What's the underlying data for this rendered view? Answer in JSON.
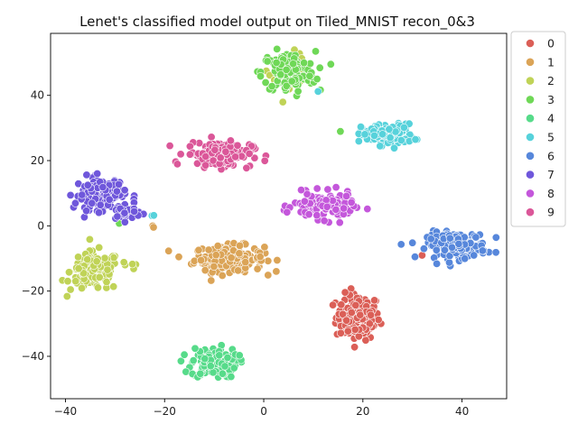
{
  "chart_data": {
    "type": "scatter",
    "title": "Lenet's classified model output on Tiled_MNIST recon_0&3",
    "xlabel": "",
    "ylabel": "",
    "xlim": [
      -43,
      49
    ],
    "ylim": [
      -53,
      59
    ],
    "xticks": [
      -40,
      -20,
      0,
      20,
      40
    ],
    "yticks": [
      -40,
      -20,
      0,
      20,
      40
    ],
    "xtick_labels": [
      "−40",
      "−20",
      "0",
      "20",
      "40"
    ],
    "ytick_labels": [
      "−40",
      "−20",
      "0",
      "20",
      "40"
    ],
    "grid": false,
    "legend_position": "outside-top-right",
    "marker_edge_color": "#ffffff",
    "series": [
      {
        "name": "0",
        "color": "#db5f57",
        "clusters": [
          {
            "cx": 19,
            "cy": -28,
            "sx": 2.2,
            "sy": 3.5,
            "n": 150
          },
          {
            "cx": 32,
            "cy": -9,
            "sx": 0.3,
            "sy": 0.3,
            "n": 2
          }
        ]
      },
      {
        "name": "1",
        "color": "#dba457",
        "clusters": [
          {
            "cx": -7,
            "cy": -10,
            "sx": 3.5,
            "sy": 2.0,
            "n": 170
          },
          {
            "cx": -22.5,
            "cy": -0.8,
            "sx": 0.4,
            "sy": 0.4,
            "n": 2
          }
        ]
      },
      {
        "name": "2",
        "color": "#c0d357",
        "clusters": [
          {
            "cx": -34,
            "cy": -14,
            "sx": 2.5,
            "sy": 3.0,
            "n": 140
          },
          {
            "cx": -26.5,
            "cy": -12,
            "sx": 0.6,
            "sy": 0.8,
            "n": 4
          },
          {
            "cx": 5,
            "cy": 48,
            "sx": 2.0,
            "sy": 2.5,
            "n": 60
          }
        ]
      },
      {
        "name": "3",
        "color": "#6fd857",
        "clusters": [
          {
            "cx": 5,
            "cy": 47,
            "sx": 2.7,
            "sy": 3.2,
            "n": 130
          },
          {
            "cx": -29,
            "cy": 1,
            "sx": 0.3,
            "sy": 0.3,
            "n": 1
          },
          {
            "cx": 15.5,
            "cy": 29.5,
            "sx": 0.2,
            "sy": 0.2,
            "n": 1
          }
        ]
      },
      {
        "name": "4",
        "color": "#57db8a",
        "clusters": [
          {
            "cx": -10,
            "cy": -42,
            "sx": 2.3,
            "sy": 2.3,
            "n": 140
          }
        ]
      },
      {
        "name": "5",
        "color": "#57d2db",
        "clusters": [
          {
            "cx": 25,
            "cy": 28,
            "sx": 2.6,
            "sy": 1.6,
            "n": 140
          },
          {
            "cx": -22.5,
            "cy": 3,
            "sx": 0.3,
            "sy": 0.2,
            "n": 2
          },
          {
            "cx": 11,
            "cy": 41.5,
            "sx": 0.2,
            "sy": 0.2,
            "n": 1
          }
        ]
      },
      {
        "name": "6",
        "color": "#5787db",
        "clusters": [
          {
            "cx": 39,
            "cy": -6,
            "sx": 3.0,
            "sy": 2.0,
            "n": 150
          }
        ]
      },
      {
        "name": "7",
        "color": "#6f57db",
        "clusters": [
          {
            "cx": -33,
            "cy": 10,
            "sx": 2.5,
            "sy": 2.5,
            "n": 120
          },
          {
            "cx": -28,
            "cy": 4,
            "sx": 1.6,
            "sy": 1.2,
            "n": 30
          }
        ]
      },
      {
        "name": "8",
        "color": "#c457db",
        "clusters": [
          {
            "cx": 12,
            "cy": 6,
            "sx": 3.0,
            "sy": 2.0,
            "n": 140
          }
        ]
      },
      {
        "name": "9",
        "color": "#db5799",
        "clusters": [
          {
            "cx": -9,
            "cy": 22,
            "sx": 3.3,
            "sy": 2.0,
            "n": 140
          }
        ]
      }
    ]
  }
}
